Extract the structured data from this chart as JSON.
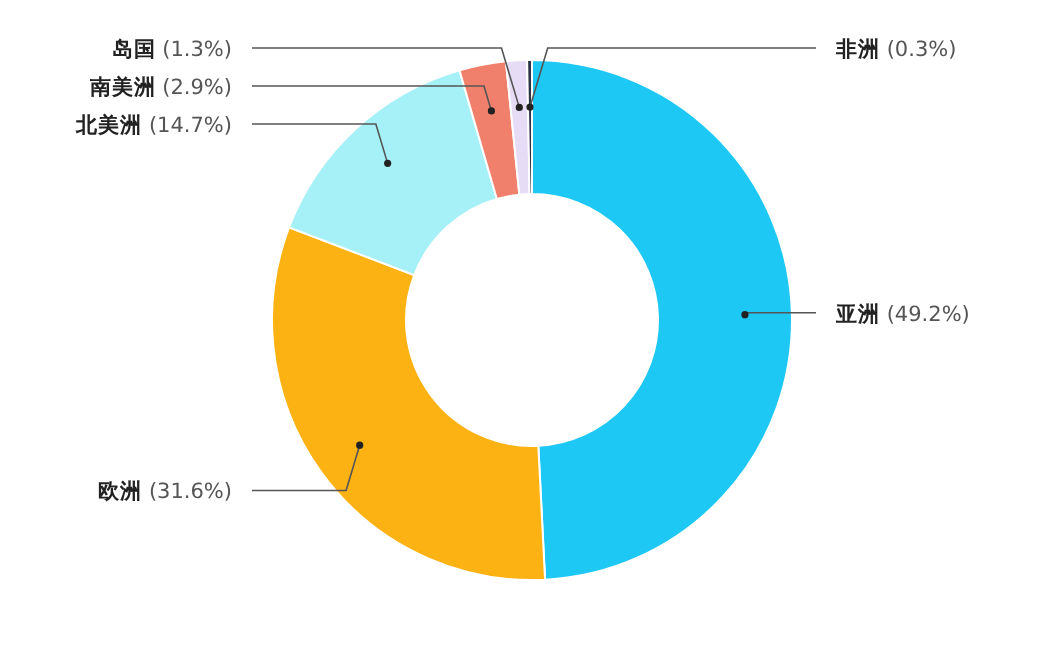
{
  "chart_data": {
    "type": "donut",
    "categories": [
      "亚洲",
      "欧洲",
      "北美洲",
      "南美洲",
      "岛国",
      "非洲"
    ],
    "values": [
      49.2,
      31.6,
      14.7,
      2.9,
      1.3,
      0.3
    ],
    "value_labels": [
      "(49.2%)",
      "(31.6%)",
      "(14.7%)",
      "(2.9%)",
      "(1.3%)",
      "(0.3%)"
    ],
    "colors": [
      "#1ec8f5",
      "#fdb213",
      "#a6f1f7",
      "#f0806b",
      "#e6dcf5",
      "#2b3345"
    ]
  }
}
